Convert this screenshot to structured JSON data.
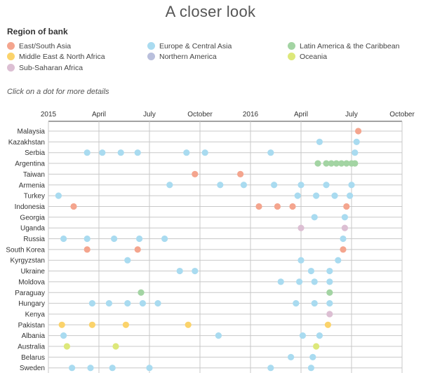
{
  "page_title": "A closer look",
  "legend": {
    "title": "Region of bank",
    "items": [
      {
        "label": "East/South Asia",
        "color": "#f4a58e"
      },
      {
        "label": "Europe & Central Asia",
        "color": "#a9dbf0"
      },
      {
        "label": "Latin America & the Caribbean",
        "color": "#a3d4a3"
      },
      {
        "label": "Middle East & North Africa",
        "color": "#fbd36b"
      },
      {
        "label": "Northern America",
        "color": "#b9bfdc"
      },
      {
        "label": "Oceania",
        "color": "#dde87a"
      },
      {
        "label": "Sub-Saharan Africa",
        "color": "#dcbfd3"
      }
    ]
  },
  "hint": "Click on a dot for more details",
  "chart_data": {
    "type": "scatter",
    "x_axis": {
      "unit": "month index from January 2015",
      "range": [
        0,
        21
      ],
      "ticks": [
        {
          "value": 0,
          "label": "2015"
        },
        {
          "value": 3,
          "label": "April"
        },
        {
          "value": 6,
          "label": "July"
        },
        {
          "value": 9,
          "label": "October"
        },
        {
          "value": 12,
          "label": "2016"
        },
        {
          "value": 15,
          "label": "April"
        },
        {
          "value": 18,
          "label": "July"
        },
        {
          "value": 21,
          "label": "October"
        }
      ]
    },
    "rows": [
      {
        "label": "Malaysia",
        "region": "East/South Asia",
        "x": [
          18.4
        ]
      },
      {
        "label": "Kazakhstan",
        "region": "Europe & Central Asia",
        "x": [
          16.1,
          18.3
        ]
      },
      {
        "label": "Serbia",
        "region": "Europe & Central Asia",
        "x": [
          2.3,
          3.2,
          4.3,
          5.3,
          8.2,
          9.3,
          13.2,
          18.2
        ]
      },
      {
        "label": "Argentina",
        "region": "Latin America & the Caribbean",
        "x": [
          16.0,
          16.5,
          16.8,
          17.1,
          17.4,
          17.7,
          18.0,
          18.2
        ]
      },
      {
        "label": "Taiwan",
        "region": "East/South Asia",
        "x": [
          8.7,
          11.4
        ]
      },
      {
        "label": "Armenia",
        "region": "Europe & Central Asia",
        "x": [
          7.2,
          10.2,
          11.6,
          13.4,
          15.0,
          16.5,
          18.0
        ]
      },
      {
        "label": "Turkey",
        "region": "Europe & Central Asia",
        "x": [
          0.6,
          14.8,
          15.9,
          17.0,
          17.9
        ]
      },
      {
        "label": "Indonesia",
        "region": "East/South Asia",
        "x": [
          1.5,
          12.5,
          13.6,
          14.5,
          17.7
        ]
      },
      {
        "label": "Georgia",
        "region": "Europe & Central Asia",
        "x": [
          15.8,
          17.6
        ]
      },
      {
        "label": "Uganda",
        "region": "Sub-Saharan Africa",
        "x": [
          15.0,
          17.6
        ]
      },
      {
        "label": "Russia",
        "region": "Europe & Central Asia",
        "x": [
          0.9,
          2.3,
          3.9,
          5.4,
          6.9,
          17.5
        ]
      },
      {
        "label": "South Korea",
        "region": "East/South Asia",
        "x": [
          2.3,
          5.3,
          17.5
        ]
      },
      {
        "label": "Kyrgyzstan",
        "region": "Europe & Central Asia",
        "x": [
          4.7,
          15.0,
          17.2
        ]
      },
      {
        "label": "Ukraine",
        "region": "Europe & Central Asia",
        "x": [
          7.8,
          8.7,
          15.6,
          16.7
        ]
      },
      {
        "label": "Moldova",
        "region": "Europe & Central Asia",
        "x": [
          13.8,
          14.9,
          15.8,
          16.7
        ]
      },
      {
        "label": "Paraguay",
        "region": "Latin America & the Caribbean",
        "x": [
          5.5,
          16.7
        ]
      },
      {
        "label": "Hungary",
        "region": "Europe & Central Asia",
        "x": [
          2.6,
          3.6,
          4.7,
          5.6,
          6.5,
          14.7,
          15.8,
          16.7
        ]
      },
      {
        "label": "Kenya",
        "region": "Sub-Saharan Africa",
        "x": [
          16.7
        ]
      },
      {
        "label": "Pakistan",
        "region": "Middle East & North Africa",
        "x": [
          0.8,
          2.6,
          4.6,
          8.3,
          16.6
        ]
      },
      {
        "label": "Albania",
        "region": "Europe & Central Asia",
        "x": [
          0.9,
          10.1,
          15.1,
          16.1
        ]
      },
      {
        "label": "Australia",
        "region": "Oceania",
        "x": [
          1.1,
          4.0,
          15.9
        ]
      },
      {
        "label": "Belarus",
        "region": "Europe & Central Asia",
        "x": [
          14.4,
          15.7
        ]
      },
      {
        "label": "Sweden",
        "region": "Europe & Central Asia",
        "x": [
          1.4,
          2.5,
          3.8,
          6.0,
          13.2,
          15.6
        ]
      }
    ]
  }
}
